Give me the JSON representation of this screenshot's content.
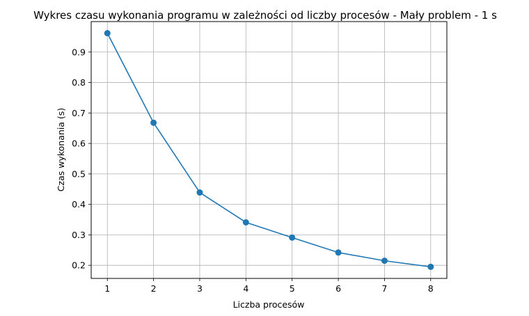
{
  "chart_data": {
    "type": "line",
    "title": "Wykres czasu wykonania programu w zależności od liczby procesów - Mały problem - 1 s",
    "xlabel": "Liczba procesów",
    "ylabel": "Czas wykonania (s)",
    "x": [
      1,
      2,
      3,
      4,
      5,
      6,
      7,
      8
    ],
    "series": [
      {
        "values": [
          0.962,
          0.668,
          0.439,
          0.341,
          0.291,
          0.242,
          0.215,
          0.195
        ],
        "color": "#1f77b4",
        "marker": "circle"
      }
    ],
    "xticks": [
      "1",
      "2",
      "3",
      "4",
      "5",
      "6",
      "7",
      "8"
    ],
    "yticks": [
      "0.2",
      "0.3",
      "0.4",
      "0.5",
      "0.6",
      "0.7",
      "0.8",
      "0.9"
    ],
    "xlim": [
      0.65,
      8.35
    ],
    "ylim": [
      0.157,
      1.0
    ],
    "grid": true
  }
}
